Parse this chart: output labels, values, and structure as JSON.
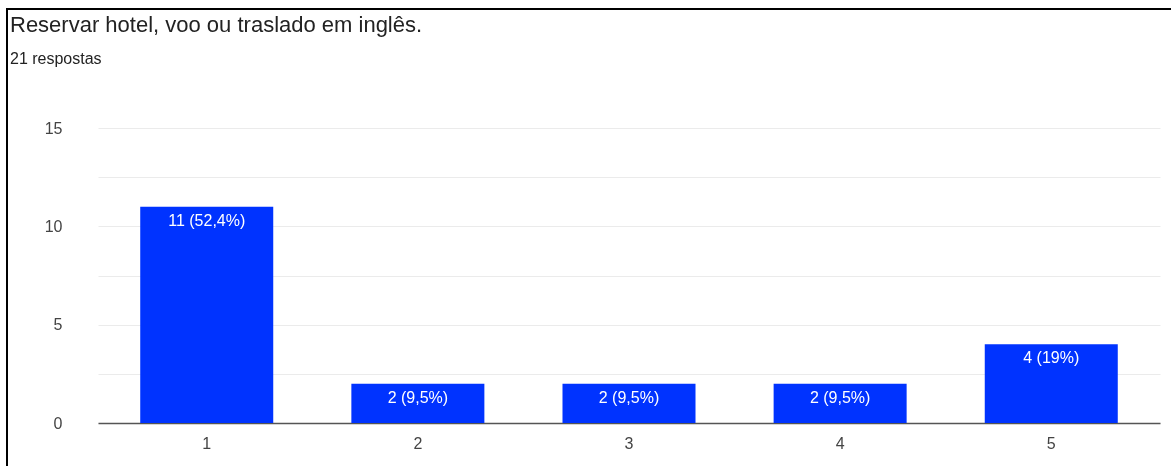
{
  "chart_data": {
    "type": "bar",
    "title": "Reservar hotel, voo ou traslado em inglês.",
    "subtitle": "21 respostas",
    "categories": [
      "1",
      "2",
      "3",
      "4",
      "5"
    ],
    "values": [
      11,
      2,
      2,
      2,
      4
    ],
    "value_labels": [
      "11 (52,4%)",
      "2 (9,5%)",
      "2 (9,5%)",
      "2 (9,5%)",
      "4 (19%)"
    ],
    "color": "#0033ff",
    "ylim": [
      0,
      15
    ],
    "yticks": [
      0,
      {
        "value": 2.5,
        "label": null
      },
      5,
      {
        "value": 7.5,
        "label": null
      },
      10,
      {
        "value": 12.5,
        "label": null
      },
      15
    ],
    "grid": "y"
  }
}
